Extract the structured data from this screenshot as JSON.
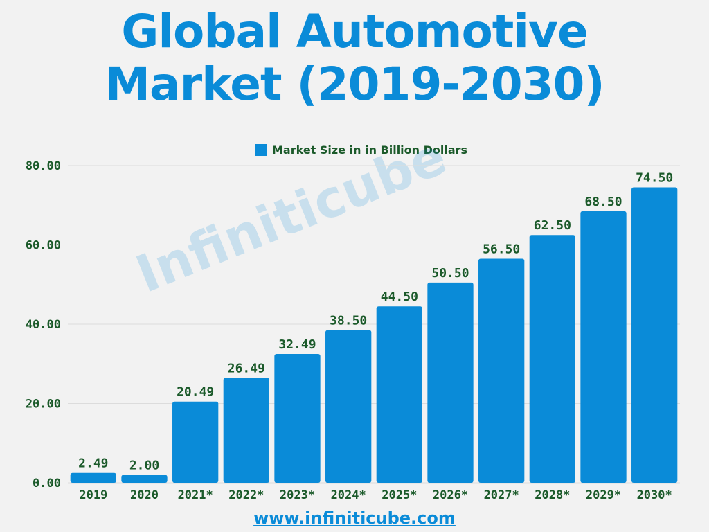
{
  "chart_data": {
    "type": "bar",
    "title": "Global Automotive Market (2019-2030)",
    "legend": "Market Size in in Billion Dollars",
    "legend_position": "top-center",
    "categories": [
      "2019",
      "2020",
      "2021*",
      "2022*",
      "2023*",
      "2024*",
      "2025*",
      "2026*",
      "2027*",
      "2028*",
      "2029*",
      "2030*"
    ],
    "series": [
      {
        "name": "Market Size in in Billion Dollars",
        "values": [
          2.49,
          2.0,
          20.49,
          26.49,
          32.49,
          38.5,
          44.5,
          50.5,
          56.5,
          62.5,
          68.5,
          74.5
        ],
        "labels": [
          "2.49",
          "2.00",
          "20.49",
          "26.49",
          "32.49",
          "38.50",
          "44.50",
          "50.50",
          "56.50",
          "62.50",
          "68.50",
          "74.50"
        ],
        "color": "#0a8bd8"
      }
    ],
    "yticks": [
      "0.00",
      "20.00",
      "40.00",
      "60.00",
      "80.00"
    ],
    "ylim": [
      0,
      80
    ],
    "xlabel": "",
    "ylabel": "",
    "grid": true
  },
  "watermark": "Infiniticube",
  "source_url": "www.infiniticube.com",
  "colors": {
    "bar": "#0a8bd8",
    "label_text": "#1b5a2a",
    "title": "#0a8bd8",
    "background": "#f2f2f2"
  }
}
